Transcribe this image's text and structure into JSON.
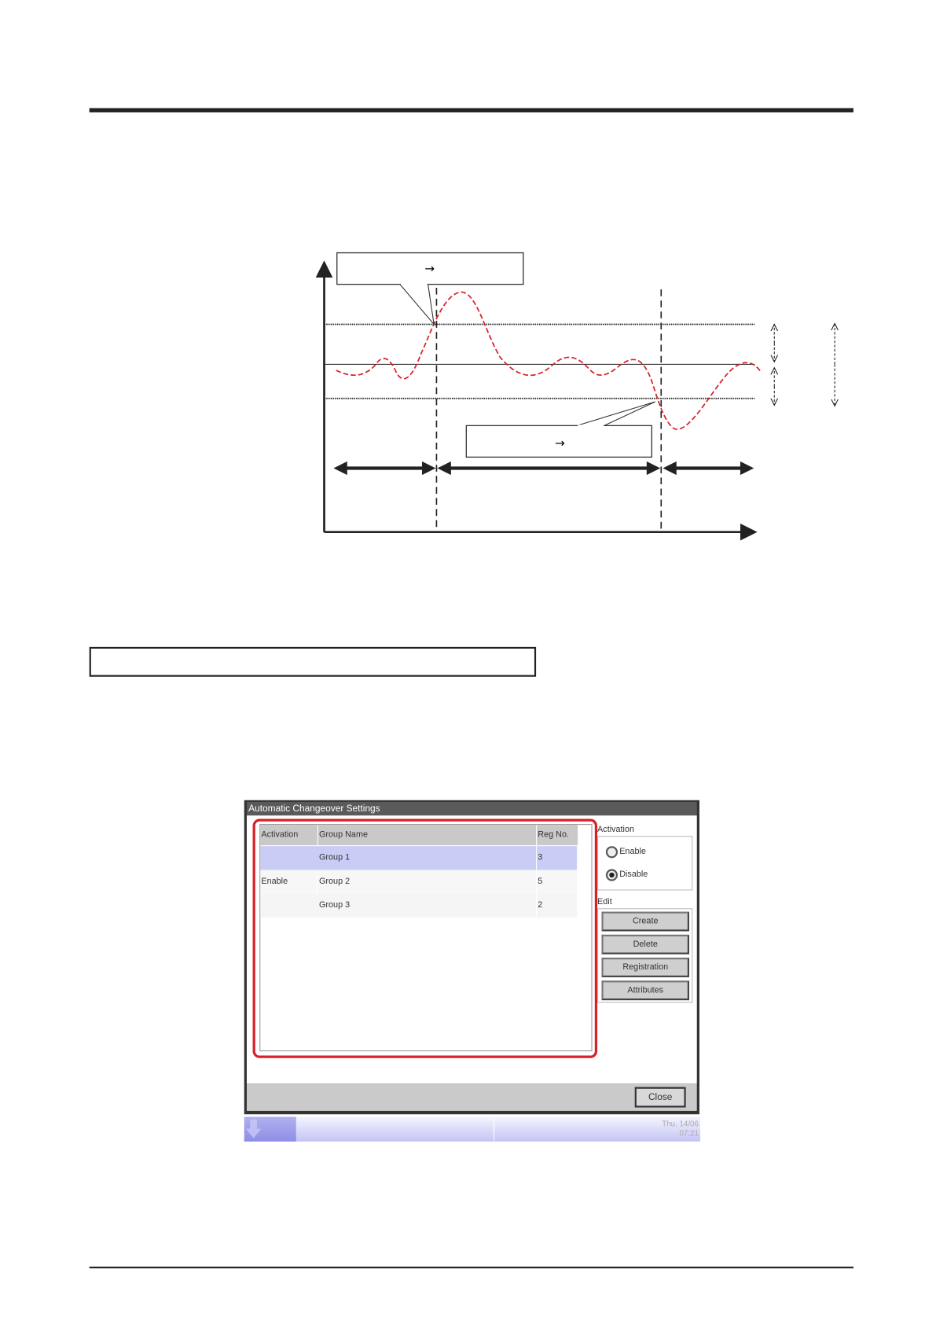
{
  "diagram": {
    "callout_top_text": "→",
    "callout_bottom_text": "→",
    "colors": {
      "curve": "#d8202a",
      "lines": "#222222"
    }
  },
  "window": {
    "title": "Automatic Changeover Settings",
    "table": {
      "headers": [
        "Activation",
        "Group Name",
        "Reg No."
      ],
      "activation_value": "Enable",
      "rows": [
        {
          "group": "Group 1",
          "reg": "3",
          "selected": true
        },
        {
          "group": "Group 2",
          "reg": "5",
          "selected": false
        },
        {
          "group": "Group 3",
          "reg": "2",
          "selected": false
        }
      ]
    },
    "activation": {
      "label": "Activation",
      "options": [
        "Enable",
        "Disable"
      ],
      "selected": "Disable"
    },
    "edit": {
      "label": "Edit",
      "buttons": [
        "Create",
        "Delete",
        "Registration",
        "Attributes"
      ]
    },
    "close_label": "Close",
    "highlight_color": "#d8202a"
  },
  "taskbar": {
    "date": "Thu. 14/06",
    "time": "07:21"
  }
}
